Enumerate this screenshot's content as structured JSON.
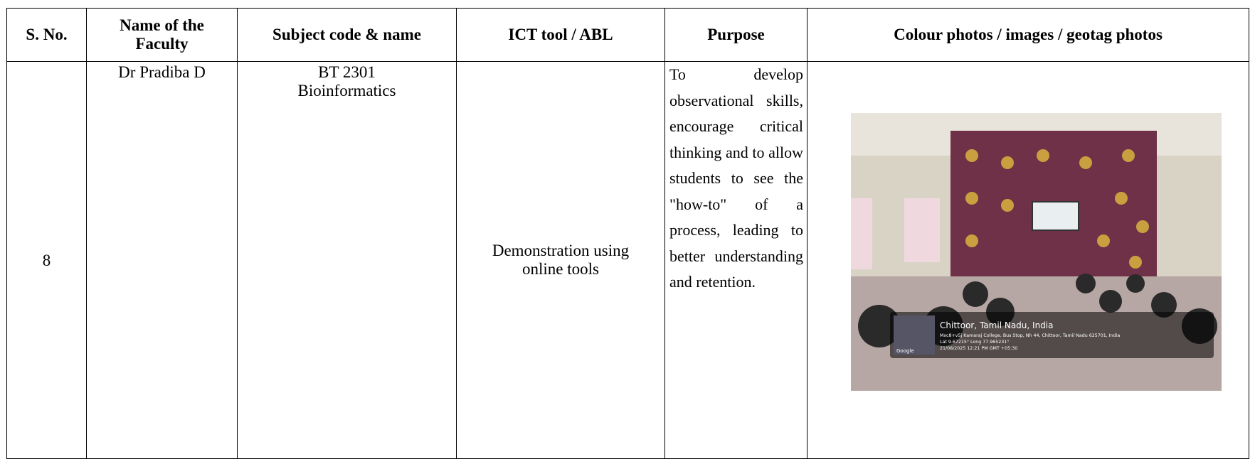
{
  "table": {
    "header": [
      "S. No.",
      "Name of the Faculty",
      "Subject code & name",
      "ICT tool / ABL",
      "Purpose",
      "Colour photos / images / geotag photos"
    ],
    "rows": [
      {
        "sno": "8",
        "faculty": "Dr Pradiba D",
        "subject_code": "BT 2301",
        "subject_name": "Bioinformatics",
        "tool": "Demonstration using online tools",
        "purpose": "To develop observational skills, encourage critical thinking and to allow students to see the \"how-to\" of a process, leading to better understanding and retention.",
        "photo": {
          "location": "Chittoor, Tamil Nadu, India",
          "address": "Mxc8+v5j Kamaraj College, Bus Stop, Nh 44, Chittoor, Tamil Nadu 625701, India",
          "coords": "Lat 9.67215° Long 77.965231°",
          "time": "21/08/2025 12:21 PM GMT +05:30",
          "brand": "Google"
        }
      }
    ]
  }
}
